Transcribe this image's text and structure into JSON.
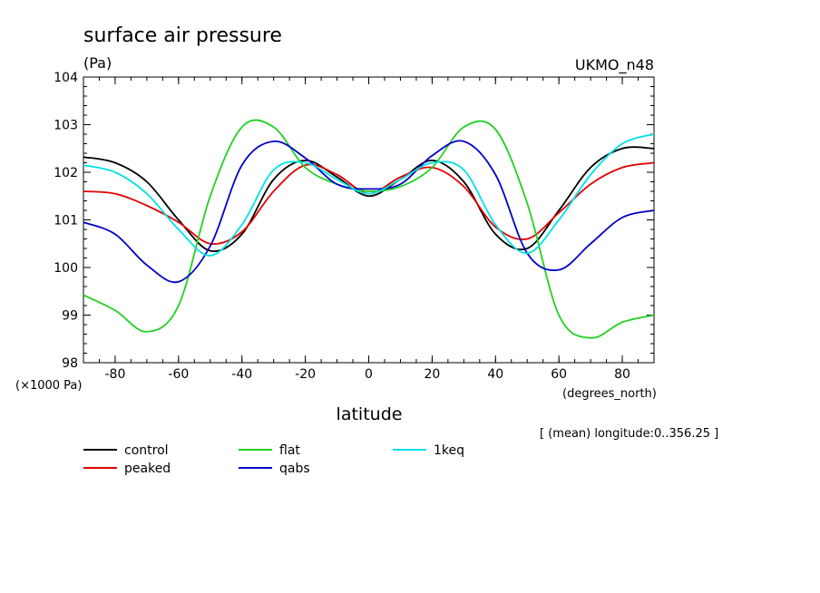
{
  "chart_data": {
    "type": "line",
    "title": "surface air pressure",
    "units": "(Pa)",
    "model": "UKMO_n48",
    "xlabel": "latitude",
    "xunits": "(degrees_north)",
    "yscale_label": "(×1000 Pa)",
    "mean_note": "[ (mean) longitude:0..356.25 ]",
    "xlim": [
      -90,
      90
    ],
    "ylim": [
      98,
      104
    ],
    "xticks": [
      -80,
      -60,
      -40,
      -20,
      0,
      20,
      40,
      60,
      80
    ],
    "yticks": [
      98,
      99,
      100,
      101,
      102,
      103,
      104
    ],
    "x": [
      -90,
      -80,
      -70,
      -60,
      -50,
      -40,
      -30,
      -20,
      -10,
      0,
      10,
      20,
      30,
      40,
      50,
      60,
      70,
      80,
      90
    ],
    "series": [
      {
        "name": "control",
        "color": "#000000",
        "values": [
          102.32,
          102.2,
          101.8,
          101.0,
          100.35,
          100.7,
          101.85,
          102.25,
          101.9,
          101.5,
          101.85,
          102.25,
          101.8,
          100.7,
          100.4,
          101.2,
          102.1,
          102.5,
          102.5
        ]
      },
      {
        "name": "peaked",
        "color": "#e00000",
        "values": [
          101.6,
          101.55,
          101.3,
          100.95,
          100.5,
          100.75,
          101.6,
          102.15,
          101.95,
          101.55,
          101.9,
          102.1,
          101.7,
          100.85,
          100.6,
          101.15,
          101.75,
          102.1,
          102.2
        ]
      },
      {
        "name": "flat",
        "color": "#22d022",
        "values": [
          99.42,
          99.1,
          98.65,
          99.2,
          101.5,
          102.95,
          102.95,
          102.1,
          101.75,
          101.6,
          101.7,
          102.1,
          102.95,
          102.9,
          101.35,
          99.0,
          98.52,
          98.85,
          99.0
        ]
      },
      {
        "name": "qabs",
        "color": "#0000c8",
        "values": [
          100.95,
          100.7,
          100.05,
          99.7,
          100.45,
          102.15,
          102.65,
          102.3,
          101.75,
          101.65,
          101.75,
          102.35,
          102.65,
          101.95,
          100.3,
          99.95,
          100.5,
          101.05,
          101.2
        ]
      },
      {
        "name": "1keq",
        "color": "#00e0e8",
        "values": [
          102.15,
          102.0,
          101.55,
          100.8,
          100.25,
          100.9,
          102.05,
          102.2,
          101.85,
          101.55,
          101.85,
          102.2,
          102.05,
          100.9,
          100.3,
          101.0,
          101.95,
          102.6,
          102.8
        ]
      }
    ]
  }
}
